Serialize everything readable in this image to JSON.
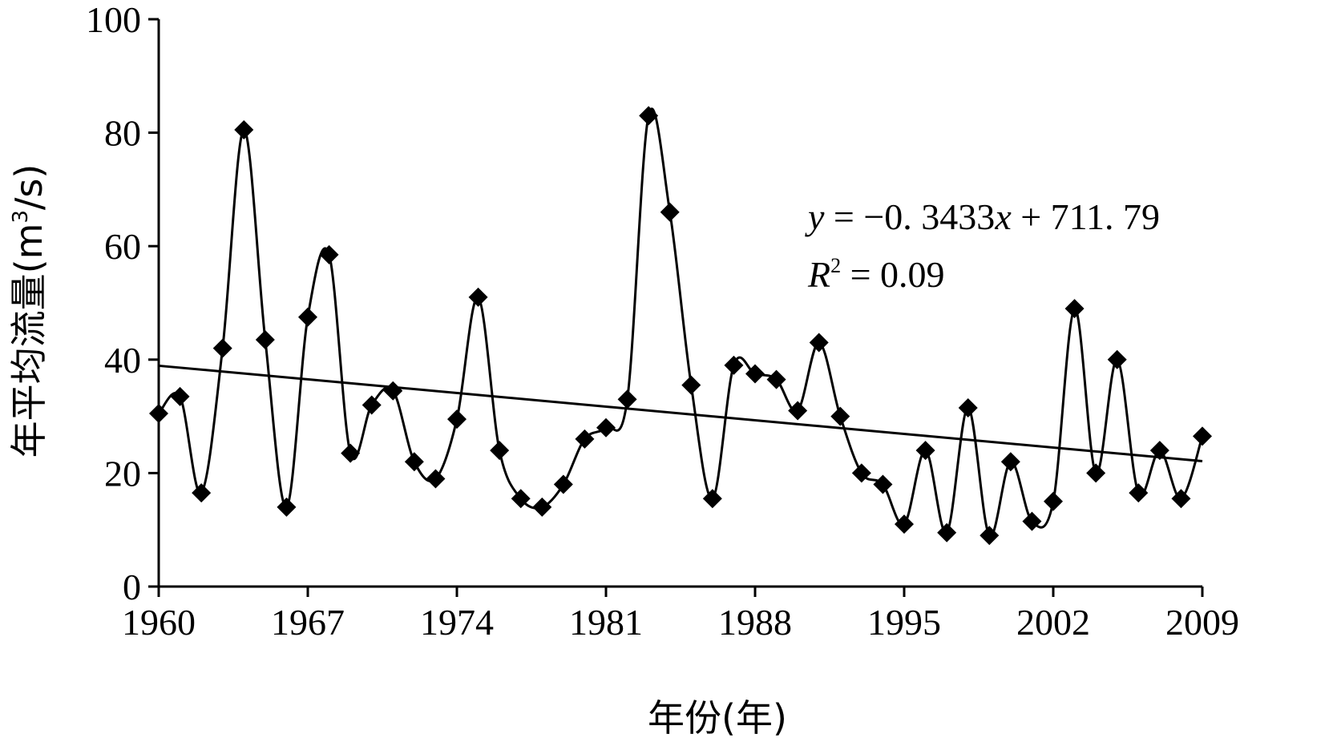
{
  "chart_data": {
    "type": "line",
    "xlabel": "年份(年)",
    "ylabel": "年平均流量(m",
    "ylabel_sup": "3",
    "ylabel_tail": "/s)",
    "ylim": [
      0,
      100
    ],
    "xlim": [
      1960,
      2009
    ],
    "yticks": [
      0,
      20,
      40,
      60,
      80,
      100
    ],
    "xticks": [
      1960,
      1967,
      1974,
      1981,
      1988,
      1995,
      2002,
      2009
    ],
    "marker": "diamond",
    "line_color": "#000000",
    "series": [
      {
        "x": [
          1960,
          1961,
          1962,
          1963,
          1964,
          1965,
          1966,
          1967,
          1968,
          1969,
          1970,
          1971,
          1972,
          1973,
          1974,
          1975,
          1976,
          1977,
          1978,
          1979,
          1980,
          1981,
          1982,
          1983,
          1984,
          1985,
          1986,
          1987,
          1988,
          1989,
          1990,
          1991,
          1992,
          1993,
          1994,
          1995,
          1996,
          1997,
          1998,
          1999,
          2000,
          2001,
          2002,
          2003,
          2004,
          2005,
          2006,
          2007,
          2008,
          2009
        ],
        "values": [
          30.5,
          33.5,
          16.5,
          42,
          80.5,
          43.5,
          14,
          47.5,
          58.5,
          23.5,
          32,
          34.5,
          22,
          19,
          29.5,
          51,
          24,
          15.5,
          14,
          18,
          26,
          28,
          33,
          83,
          66,
          35.5,
          15.5,
          39,
          37.5,
          36.5,
          31,
          43,
          30,
          20,
          18,
          11,
          24,
          9.5,
          31.5,
          9,
          22,
          11.5,
          15,
          49,
          20,
          40,
          16.5,
          24,
          15.5,
          26.5
        ]
      }
    ],
    "trendline": {
      "slope": -0.3433,
      "intercept": 711.79,
      "equation_y": "y",
      "equation_mid": " = −0. 3433",
      "equation_x": "x",
      "equation_tail": " + 711. 79",
      "r2_label": "R",
      "r2_sup": "2",
      "r2_value": " = 0.09"
    }
  }
}
